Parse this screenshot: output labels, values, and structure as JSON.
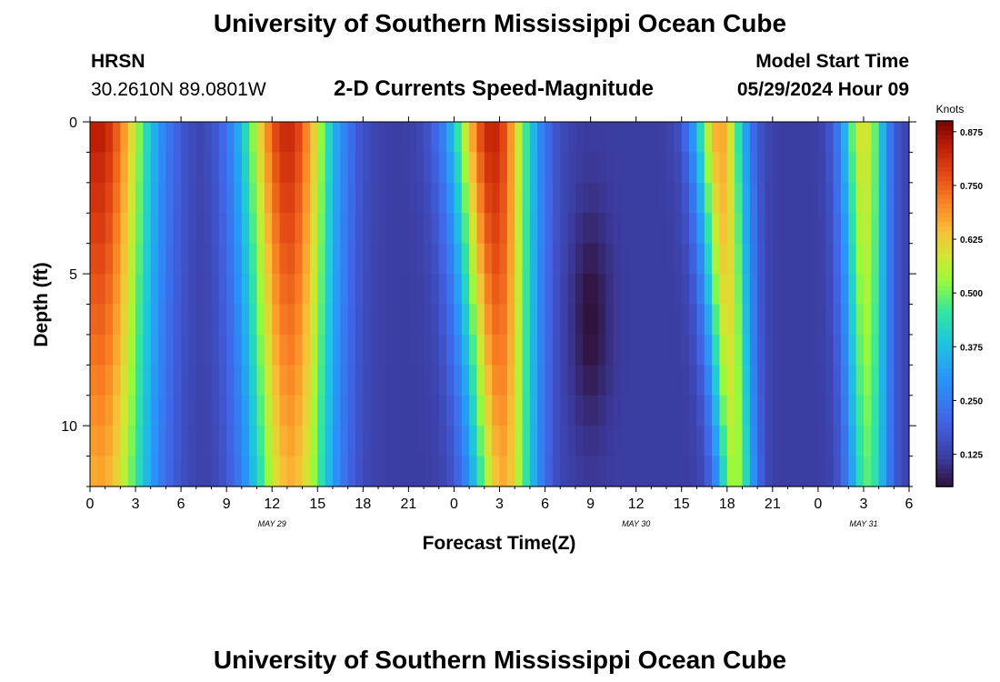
{
  "header": {
    "title_top": "University of Southern Mississippi Ocean Cube",
    "title_bottom": "University of Southern Mississippi Ocean Cube",
    "station": "HRSN",
    "coords": "30.2610N  89.0801W",
    "model_start_label": "Model Start Time",
    "model_start_value": "05/29/2024 Hour 09"
  },
  "chart_data": {
    "type": "heatmap",
    "title": "2-D Currents Speed-Magnitude",
    "xlabel": "Forecast Time(Z)",
    "ylabel": "Depth (ft)",
    "x_hours_from_may29_00z": [
      0,
      54
    ],
    "y_depth_range_ft": [
      0,
      12
    ],
    "x_tick_labels": [
      "0",
      "3",
      "6",
      "9",
      "12",
      "15",
      "18",
      "21",
      "0",
      "3",
      "6",
      "9",
      "12",
      "15",
      "18",
      "21",
      "0",
      "3",
      "6"
    ],
    "y_tick_labels": [
      "0",
      "5",
      "10"
    ],
    "y_tick_values": [
      0,
      5,
      10
    ],
    "date_labels": [
      {
        "text": "MAY 29",
        "hour": 12
      },
      {
        "text": "MAY 30",
        "hour": 36
      },
      {
        "text": "MAY 31",
        "hour": 51
      }
    ],
    "colorbar": {
      "title": "Knots",
      "range": [
        0.05,
        0.9
      ],
      "tick_labels": [
        "0.875",
        "0.750",
        "0.625",
        "0.500",
        "0.375",
        "0.250",
        "0.125"
      ],
      "tick_values": [
        0.875,
        0.75,
        0.625,
        0.5,
        0.375,
        0.25,
        0.125
      ]
    },
    "model": {
      "peaks": [
        {
          "hour": 0.5,
          "amplitude": 0.85,
          "width": 3.5,
          "depth_shift": 0.05
        },
        {
          "hour": 13,
          "amplitude": 0.83,
          "width": 3.0,
          "depth_shift": 0.08
        },
        {
          "hour": 26.5,
          "amplitude": 0.84,
          "width": 2.6,
          "depth_shift": 0.25
        },
        {
          "hour": 41.5,
          "amplitude": 0.68,
          "width": 1.7,
          "depth_shift": 0.35
        },
        {
          "hour": 51,
          "amplitude": 0.6,
          "width": 1.5,
          "depth_shift": 0.1
        }
      ],
      "baseline": 0.12,
      "slack_minimum": {
        "hour": 33,
        "depth_ft": 6.5,
        "value": 0.04
      }
    }
  }
}
